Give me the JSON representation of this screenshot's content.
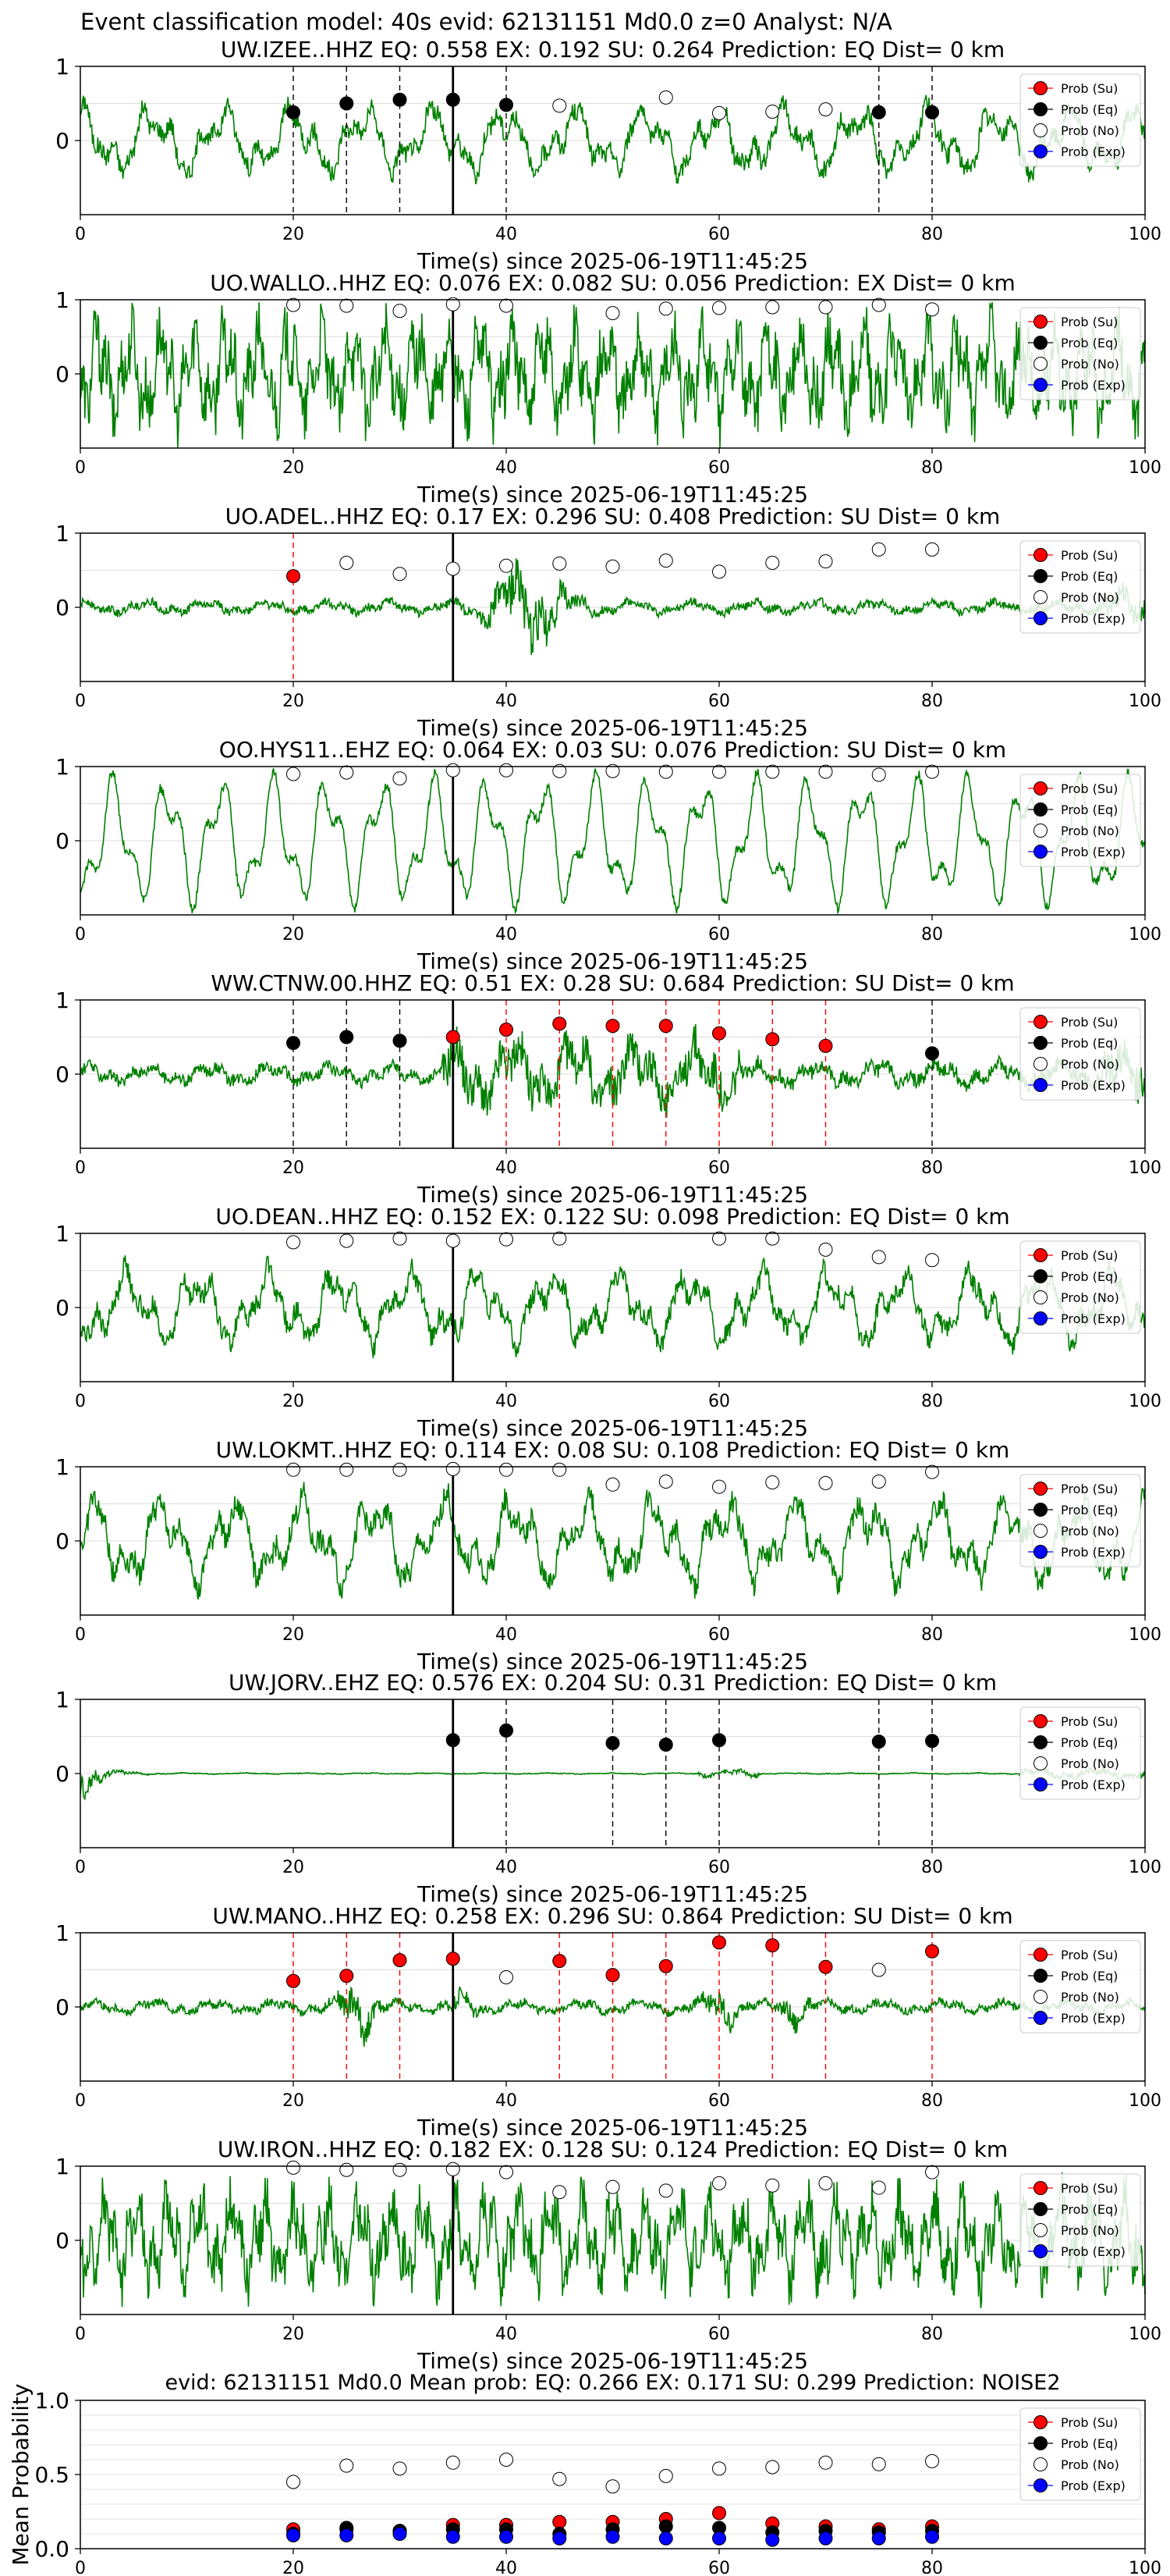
{
  "figure": {
    "suptitle": "Event classification model: 40s evid: 62131151 Md0.0 z=0 Analyst: N/A",
    "xlabel": "Time(s) since 2025-06-19T11:45:25",
    "legend": [
      "Prob (Su)",
      "Prob (Eq)",
      "Prob (No)",
      "Prob (Exp)"
    ],
    "colors": {
      "waveform": "#008000",
      "su": "#ff0000",
      "eq": "#000000",
      "no": "#ffffff",
      "exp": "#0000ff",
      "grid": "#dddddd"
    }
  },
  "chart_data": [
    {
      "type": "line",
      "station": "UW.IZEE..HHZ",
      "eq": "0.558",
      "ex": "0.192",
      "su": "0.264",
      "prediction": "EQ",
      "dist": "0 km",
      "xlim": [
        0,
        100
      ],
      "ylim": [
        -1,
        1
      ],
      "yticks": [
        0,
        1
      ],
      "xticks": [
        0,
        20,
        40,
        60,
        80,
        100
      ],
      "amp": 0.55,
      "dominant": "medium",
      "onset": 35,
      "points": [
        {
          "t": 20,
          "p": 0.38,
          "c": "eq"
        },
        {
          "t": 25,
          "p": 0.5,
          "c": "eq"
        },
        {
          "t": 30,
          "p": 0.55,
          "c": "eq"
        },
        {
          "t": 35,
          "p": 0.55,
          "c": "eq"
        },
        {
          "t": 40,
          "p": 0.48,
          "c": "eq"
        },
        {
          "t": 45,
          "p": 0.47,
          "c": "no"
        },
        {
          "t": 55,
          "p": 0.58,
          "c": "no"
        },
        {
          "t": 60,
          "p": 0.37,
          "c": "no"
        },
        {
          "t": 65,
          "p": 0.39,
          "c": "no"
        },
        {
          "t": 70,
          "p": 0.42,
          "c": "no"
        },
        {
          "t": 75,
          "p": 0.38,
          "c": "eq"
        },
        {
          "t": 80,
          "p": 0.38,
          "c": "eq"
        }
      ]
    },
    {
      "type": "line",
      "station": "UO.WALLO..HHZ",
      "eq": "0.076",
      "ex": "0.082",
      "su": "0.056",
      "prediction": "EX",
      "dist": "0 km",
      "xlim": [
        0,
        100
      ],
      "ylim": [
        -1,
        1
      ],
      "yticks": [
        0,
        1
      ],
      "xticks": [
        0,
        20,
        40,
        60,
        80,
        100
      ],
      "amp": 0.9,
      "dominant": "fast",
      "onset": 35,
      "points": [
        {
          "t": 20,
          "p": 0.93,
          "c": "no"
        },
        {
          "t": 25,
          "p": 0.92,
          "c": "no"
        },
        {
          "t": 30,
          "p": 0.85,
          "c": "no"
        },
        {
          "t": 35,
          "p": 0.94,
          "c": "no"
        },
        {
          "t": 40,
          "p": 0.92,
          "c": "no"
        },
        {
          "t": 50,
          "p": 0.82,
          "c": "no"
        },
        {
          "t": 55,
          "p": 0.88,
          "c": "no"
        },
        {
          "t": 60,
          "p": 0.89,
          "c": "no"
        },
        {
          "t": 65,
          "p": 0.9,
          "c": "no"
        },
        {
          "t": 70,
          "p": 0.9,
          "c": "no"
        },
        {
          "t": 75,
          "p": 0.93,
          "c": "no"
        },
        {
          "t": 80,
          "p": 0.87,
          "c": "no"
        }
      ]
    },
    {
      "type": "line",
      "station": "UO.ADEL..HHZ",
      "eq": "0.17",
      "ex": "0.296",
      "su": "0.408",
      "prediction": "SU",
      "dist": "0 km",
      "xlim": [
        0,
        100
      ],
      "ylim": [
        -1,
        1
      ],
      "yticks": [
        0,
        1
      ],
      "xticks": [
        0,
        20,
        40,
        60,
        80,
        100
      ],
      "amp": 0.45,
      "dominant": "burst",
      "onset": 35,
      "points": [
        {
          "t": 20,
          "p": 0.42,
          "c": "su"
        },
        {
          "t": 25,
          "p": 0.6,
          "c": "no"
        },
        {
          "t": 30,
          "p": 0.45,
          "c": "no"
        },
        {
          "t": 35,
          "p": 0.52,
          "c": "no"
        },
        {
          "t": 40,
          "p": 0.56,
          "c": "no"
        },
        {
          "t": 45,
          "p": 0.59,
          "c": "no"
        },
        {
          "t": 50,
          "p": 0.55,
          "c": "no"
        },
        {
          "t": 55,
          "p": 0.63,
          "c": "no"
        },
        {
          "t": 60,
          "p": 0.48,
          "c": "no"
        },
        {
          "t": 65,
          "p": 0.6,
          "c": "no"
        },
        {
          "t": 70,
          "p": 0.62,
          "c": "no"
        },
        {
          "t": 75,
          "p": 0.78,
          "c": "no"
        },
        {
          "t": 80,
          "p": 0.78,
          "c": "no"
        }
      ]
    },
    {
      "type": "line",
      "station": "OO.HYS11..EHZ",
      "eq": "0.064",
      "ex": "0.03",
      "su": "0.076",
      "prediction": "SU",
      "dist": "0 km",
      "xlim": [
        0,
        100
      ],
      "ylim": [
        -1,
        1
      ],
      "yticks": [
        0,
        1
      ],
      "xticks": [
        0,
        20,
        40,
        60,
        80,
        100
      ],
      "amp": 0.85,
      "dominant": "smooth",
      "onset": 35,
      "points": [
        {
          "t": 20,
          "p": 0.9,
          "c": "no"
        },
        {
          "t": 25,
          "p": 0.92,
          "c": "no"
        },
        {
          "t": 30,
          "p": 0.84,
          "c": "no"
        },
        {
          "t": 35,
          "p": 0.95,
          "c": "no"
        },
        {
          "t": 40,
          "p": 0.95,
          "c": "no"
        },
        {
          "t": 45,
          "p": 0.94,
          "c": "no"
        },
        {
          "t": 50,
          "p": 0.94,
          "c": "no"
        },
        {
          "t": 55,
          "p": 0.93,
          "c": "no"
        },
        {
          "t": 60,
          "p": 0.93,
          "c": "no"
        },
        {
          "t": 65,
          "p": 0.93,
          "c": "no"
        },
        {
          "t": 70,
          "p": 0.93,
          "c": "no"
        },
        {
          "t": 75,
          "p": 0.89,
          "c": "no"
        },
        {
          "t": 80,
          "p": 0.93,
          "c": "no"
        }
      ]
    },
    {
      "type": "line",
      "station": "WW.CTNW.00.HHZ",
      "eq": "0.51",
      "ex": "0.28",
      "su": "0.684",
      "prediction": "SU",
      "dist": "0 km",
      "xlim": [
        0,
        100
      ],
      "ylim": [
        -1,
        1
      ],
      "yticks": [
        0,
        1
      ],
      "xticks": [
        0,
        20,
        40,
        60,
        80,
        100
      ],
      "amp": 0.5,
      "dominant": "burst2",
      "onset": 35,
      "points": [
        {
          "t": 20,
          "p": 0.42,
          "c": "eq"
        },
        {
          "t": 25,
          "p": 0.5,
          "c": "eq"
        },
        {
          "t": 30,
          "p": 0.45,
          "c": "eq"
        },
        {
          "t": 35,
          "p": 0.5,
          "c": "su"
        },
        {
          "t": 40,
          "p": 0.6,
          "c": "su"
        },
        {
          "t": 45,
          "p": 0.68,
          "c": "su"
        },
        {
          "t": 50,
          "p": 0.65,
          "c": "su"
        },
        {
          "t": 55,
          "p": 0.65,
          "c": "su"
        },
        {
          "t": 60,
          "p": 0.55,
          "c": "su"
        },
        {
          "t": 65,
          "p": 0.47,
          "c": "su"
        },
        {
          "t": 70,
          "p": 0.38,
          "c": "su"
        },
        {
          "t": 80,
          "p": 0.28,
          "c": "eq"
        }
      ]
    },
    {
      "type": "line",
      "station": "UO.DEAN..HHZ",
      "eq": "0.152",
      "ex": "0.122",
      "su": "0.098",
      "prediction": "EQ",
      "dist": "0 km",
      "xlim": [
        0,
        100
      ],
      "ylim": [
        -1,
        1
      ],
      "yticks": [
        0,
        1
      ],
      "xticks": [
        0,
        20,
        40,
        60,
        80,
        100
      ],
      "amp": 0.6,
      "dominant": "medium",
      "onset": 35,
      "points": [
        {
          "t": 20,
          "p": 0.88,
          "c": "no"
        },
        {
          "t": 25,
          "p": 0.9,
          "c": "no"
        },
        {
          "t": 30,
          "p": 0.93,
          "c": "no"
        },
        {
          "t": 35,
          "p": 0.9,
          "c": "no"
        },
        {
          "t": 40,
          "p": 0.92,
          "c": "no"
        },
        {
          "t": 45,
          "p": 0.93,
          "c": "no"
        },
        {
          "t": 60,
          "p": 0.93,
          "c": "no"
        },
        {
          "t": 65,
          "p": 0.93,
          "c": "no"
        },
        {
          "t": 70,
          "p": 0.78,
          "c": "no"
        },
        {
          "t": 75,
          "p": 0.68,
          "c": "no"
        },
        {
          "t": 80,
          "p": 0.64,
          "c": "no"
        }
      ]
    },
    {
      "type": "line",
      "station": "UW.LOKMT..HHZ",
      "eq": "0.114",
      "ex": "0.08",
      "su": "0.108",
      "prediction": "EQ",
      "dist": "0 km",
      "xlim": [
        0,
        100
      ],
      "ylim": [
        -1,
        1
      ],
      "yticks": [
        0,
        1
      ],
      "xticks": [
        0,
        20,
        40,
        60,
        80,
        100
      ],
      "amp": 0.7,
      "dominant": "medium",
      "onset": 35,
      "points": [
        {
          "t": 20,
          "p": 0.96,
          "c": "no"
        },
        {
          "t": 25,
          "p": 0.96,
          "c": "no"
        },
        {
          "t": 30,
          "p": 0.96,
          "c": "no"
        },
        {
          "t": 35,
          "p": 0.97,
          "c": "no"
        },
        {
          "t": 40,
          "p": 0.96,
          "c": "no"
        },
        {
          "t": 45,
          "p": 0.96,
          "c": "no"
        },
        {
          "t": 50,
          "p": 0.76,
          "c": "no"
        },
        {
          "t": 55,
          "p": 0.8,
          "c": "no"
        },
        {
          "t": 60,
          "p": 0.73,
          "c": "no"
        },
        {
          "t": 65,
          "p": 0.79,
          "c": "no"
        },
        {
          "t": 70,
          "p": 0.78,
          "c": "no"
        },
        {
          "t": 75,
          "p": 0.8,
          "c": "no"
        },
        {
          "t": 80,
          "p": 0.93,
          "c": "no"
        }
      ]
    },
    {
      "type": "line",
      "station": "UW.JORV..EHZ",
      "eq": "0.576",
      "ex": "0.204",
      "su": "0.31",
      "prediction": "EQ",
      "dist": "0 km",
      "xlim": [
        0,
        100
      ],
      "ylim": [
        -1,
        1
      ],
      "yticks": [
        0,
        1
      ],
      "xticks": [
        0,
        20,
        40,
        60,
        80,
        100
      ],
      "amp": 0.06,
      "dominant": "quiet",
      "onset": 35,
      "points": [
        {
          "t": 35,
          "p": 0.45,
          "c": "eq"
        },
        {
          "t": 40,
          "p": 0.58,
          "c": "eq"
        },
        {
          "t": 50,
          "p": 0.41,
          "c": "eq"
        },
        {
          "t": 55,
          "p": 0.39,
          "c": "eq"
        },
        {
          "t": 60,
          "p": 0.45,
          "c": "eq"
        },
        {
          "t": 75,
          "p": 0.43,
          "c": "eq"
        },
        {
          "t": 80,
          "p": 0.44,
          "c": "eq"
        }
      ]
    },
    {
      "type": "line",
      "station": "UW.MANO..HHZ",
      "eq": "0.258",
      "ex": "0.296",
      "su": "0.864",
      "prediction": "SU",
      "dist": "0 km",
      "xlim": [
        0,
        100
      ],
      "ylim": [
        -1,
        1
      ],
      "yticks": [
        0,
        1
      ],
      "xticks": [
        0,
        20,
        40,
        60,
        80,
        100
      ],
      "amp": 0.35,
      "dominant": "bursty",
      "onset": 35,
      "points": [
        {
          "t": 20,
          "p": 0.35,
          "c": "su"
        },
        {
          "t": 25,
          "p": 0.42,
          "c": "su"
        },
        {
          "t": 30,
          "p": 0.63,
          "c": "su"
        },
        {
          "t": 35,
          "p": 0.65,
          "c": "su"
        },
        {
          "t": 40,
          "p": 0.4,
          "c": "no"
        },
        {
          "t": 45,
          "p": 0.62,
          "c": "su"
        },
        {
          "t": 50,
          "p": 0.43,
          "c": "su"
        },
        {
          "t": 55,
          "p": 0.55,
          "c": "su"
        },
        {
          "t": 60,
          "p": 0.87,
          "c": "su"
        },
        {
          "t": 65,
          "p": 0.83,
          "c": "su"
        },
        {
          "t": 70,
          "p": 0.54,
          "c": "su"
        },
        {
          "t": 75,
          "p": 0.5,
          "c": "no"
        },
        {
          "t": 80,
          "p": 0.75,
          "c": "su"
        }
      ]
    },
    {
      "type": "line",
      "station": "UW.IRON..HHZ",
      "eq": "0.182",
      "ex": "0.128",
      "su": "0.124",
      "prediction": "EQ",
      "dist": "0 km",
      "xlim": [
        0,
        100
      ],
      "ylim": [
        -1,
        1
      ],
      "yticks": [
        0,
        1
      ],
      "xticks": [
        0,
        20,
        40,
        60,
        80,
        100
      ],
      "amp": 0.8,
      "dominant": "fast",
      "onset": 35,
      "points": [
        {
          "t": 20,
          "p": 0.98,
          "c": "no"
        },
        {
          "t": 25,
          "p": 0.95,
          "c": "no"
        },
        {
          "t": 30,
          "p": 0.95,
          "c": "no"
        },
        {
          "t": 35,
          "p": 0.96,
          "c": "no"
        },
        {
          "t": 40,
          "p": 0.92,
          "c": "no"
        },
        {
          "t": 45,
          "p": 0.65,
          "c": "no"
        },
        {
          "t": 50,
          "p": 0.72,
          "c": "no"
        },
        {
          "t": 55,
          "p": 0.67,
          "c": "no"
        },
        {
          "t": 60,
          "p": 0.77,
          "c": "no"
        },
        {
          "t": 65,
          "p": 0.74,
          "c": "no"
        },
        {
          "t": 70,
          "p": 0.77,
          "c": "no"
        },
        {
          "t": 75,
          "p": 0.71,
          "c": "no"
        },
        {
          "t": 80,
          "p": 0.92,
          "c": "no"
        }
      ]
    },
    {
      "type": "scatter",
      "title": "evid: 62131151   Md0.0   Mean prob:   EQ: 0.266  EX: 0.171  SU: 0.299   Prediction: NOISE2",
      "ylabel": "Mean Probability",
      "xlim": [
        0,
        100
      ],
      "ylim": [
        0,
        1
      ],
      "yticks": [
        "0.0",
        "0.5",
        "1.0"
      ],
      "xticks": [
        0,
        20,
        40,
        60,
        80,
        100
      ],
      "series": [
        {
          "name": "Prob (No)",
          "c": "no",
          "x": [
            20,
            25,
            30,
            35,
            40,
            45,
            50,
            55,
            60,
            65,
            70,
            75,
            80
          ],
          "y": [
            0.45,
            0.56,
            0.54,
            0.58,
            0.6,
            0.47,
            0.42,
            0.49,
            0.54,
            0.55,
            0.58,
            0.57,
            0.59
          ]
        },
        {
          "name": "Prob (Su)",
          "c": "su",
          "x": [
            20,
            25,
            30,
            35,
            40,
            45,
            50,
            55,
            60,
            65,
            70,
            75,
            80
          ],
          "y": [
            0.13,
            0.13,
            0.12,
            0.16,
            0.16,
            0.18,
            0.18,
            0.2,
            0.24,
            0.17,
            0.15,
            0.13,
            0.15
          ]
        },
        {
          "name": "Prob (Eq)",
          "c": "eq",
          "x": [
            20,
            25,
            30,
            35,
            40,
            45,
            50,
            55,
            60,
            65,
            70,
            75,
            80
          ],
          "y": [
            0.1,
            0.14,
            0.12,
            0.13,
            0.13,
            0.1,
            0.13,
            0.15,
            0.14,
            0.11,
            0.12,
            0.11,
            0.12
          ]
        },
        {
          "name": "Prob (Exp)",
          "c": "exp",
          "x": [
            20,
            25,
            30,
            35,
            40,
            45,
            50,
            55,
            60,
            65,
            70,
            75,
            80
          ],
          "y": [
            0.09,
            0.09,
            0.1,
            0.08,
            0.08,
            0.07,
            0.08,
            0.07,
            0.07,
            0.06,
            0.07,
            0.07,
            0.08
          ]
        }
      ]
    }
  ]
}
